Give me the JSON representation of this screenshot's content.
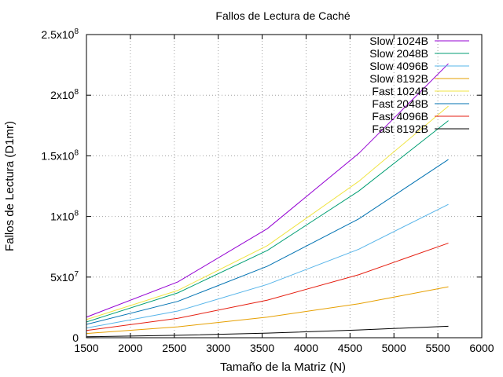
{
  "chart_data": {
    "type": "line",
    "title": "Fallos de Lectura de Caché",
    "xlabel": "Tamaño de la Matriz (N)",
    "ylabel": "Fallos de Lectura (D1mr)",
    "xlim": [
      1500,
      6000
    ],
    "ylim": [
      0,
      250000000
    ],
    "x_ticks": [
      1500,
      2000,
      2500,
      3000,
      3500,
      4000,
      4500,
      5000,
      5500,
      6000
    ],
    "y_ticks": [
      {
        "value": 0,
        "mantissa": "0",
        "exp": ""
      },
      {
        "value": 50000000,
        "mantissa": "5x10",
        "exp": "7"
      },
      {
        "value": 100000000,
        "mantissa": "1x10",
        "exp": "8"
      },
      {
        "value": 150000000,
        "mantissa": "1.5x10",
        "exp": "8"
      },
      {
        "value": 200000000,
        "mantissa": "2x10",
        "exp": "8"
      },
      {
        "value": 250000000,
        "mantissa": "2.5x10",
        "exp": "8"
      }
    ],
    "grid": true,
    "legend_position": "top-right",
    "x": [
      1500,
      2540,
      3560,
      4600,
      5620
    ],
    "series": [
      {
        "name": "Slow 1024B",
        "color": "#9400d3",
        "values": [
          17000000,
          46000000,
          90000000,
          152000000,
          226000000
        ]
      },
      {
        "name": "Slow 2048B",
        "color": "#009e73",
        "values": [
          13000000,
          37000000,
          72000000,
          121000000,
          179000000
        ]
      },
      {
        "name": "Slow 4096B",
        "color": "#56b4e9",
        "values": [
          8000000,
          22000000,
          44000000,
          73000000,
          110000000
        ]
      },
      {
        "name": "Slow 8192B",
        "color": "#e69f00",
        "values": [
          3500000,
          9000000,
          17000000,
          28000000,
          42000000
        ]
      },
      {
        "name": "Fast 1024B",
        "color": "#f0e442",
        "values": [
          15000000,
          39000000,
          76000000,
          129000000,
          191000000
        ]
      },
      {
        "name": "Fast 2048B",
        "color": "#0072b2",
        "values": [
          11000000,
          30000000,
          59000000,
          98000000,
          147000000
        ]
      },
      {
        "name": "Fast 4096B",
        "color": "#e51e10",
        "values": [
          6000000,
          16000000,
          31000000,
          52000000,
          78000000
        ]
      },
      {
        "name": "Fast 8192B",
        "color": "#000000",
        "values": [
          800000,
          2000000,
          3800000,
          6400000,
          9500000
        ]
      }
    ]
  }
}
